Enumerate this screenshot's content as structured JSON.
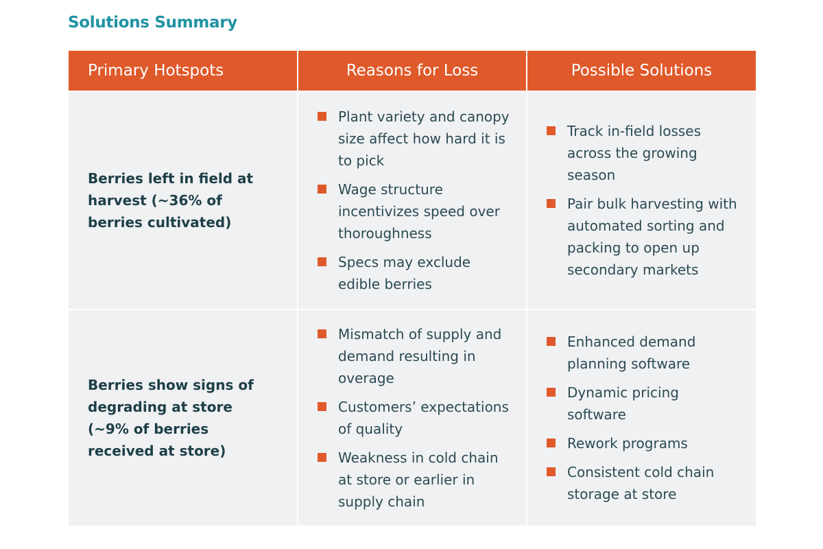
{
  "title": "Solutions Summary",
  "colors": {
    "accent": "#e0592a",
    "title": "#1f93a3",
    "text": "#1d3f47",
    "cell_bg": "#f0f1f3"
  },
  "table": {
    "headers": [
      "Primary Hotspots",
      "Reasons for Loss",
      "Possible Solutions"
    ],
    "rows": [
      {
        "hotspot": "Berries left in field at harvest (~36% of berries cultivated)",
        "reasons": [
          "Plant variety and canopy size affect how hard it is to pick",
          "Wage structure incentivizes speed over thoroughness",
          "Specs may exclude edible berries"
        ],
        "solutions": [
          "Track in-field losses across the growing season",
          "Pair bulk harvesting with automated sorting and packing to open up secondary markets"
        ]
      },
      {
        "hotspot": "Berries show signs of degrading at store (~9% of berries received at store)",
        "reasons": [
          "Mismatch of supply and demand resulting in overage",
          "Customers’ expectations of quality",
          "Weakness in cold chain at store or earlier in supply chain"
        ],
        "solutions": [
          "Enhanced demand planning software",
          "Dynamic pricing software",
          "Rework programs",
          "Consistent cold chain storage at store"
        ]
      }
    ]
  }
}
